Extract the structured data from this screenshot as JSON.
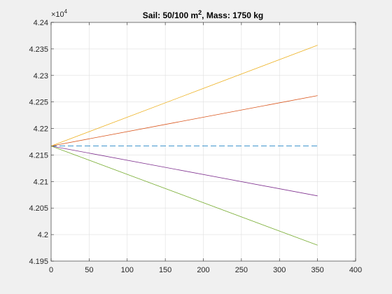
{
  "chart_data": {
    "type": "line",
    "title": {
      "prefix": "Sail: 50/100 m",
      "superscript": "2",
      "suffix": ", Mass: 1750 kg"
    },
    "xlabel": "",
    "ylabel": "",
    "xlim": [
      0,
      400
    ],
    "ylim": [
      41950,
      42400
    ],
    "y_exponent_label": {
      "base": "×10",
      "power": "4"
    },
    "x_ticks": [
      0,
      50,
      100,
      150,
      200,
      250,
      300,
      350,
      400
    ],
    "x_tick_labels": [
      "0",
      "50",
      "100",
      "150",
      "200",
      "250",
      "300",
      "350",
      "400"
    ],
    "y_ticks": [
      41950,
      42000,
      42050,
      42100,
      42150,
      42200,
      42250,
      42300,
      42350,
      42400
    ],
    "y_tick_labels": [
      "4.195",
      "4.2",
      "4.205",
      "4.21",
      "4.215",
      "4.22",
      "4.225",
      "4.23",
      "4.235",
      "4.24"
    ],
    "grid": true,
    "legend": "none",
    "series": [
      {
        "x": [
          0,
          350
        ],
        "y": [
          42167,
          42167
        ],
        "color": "#0072bd",
        "dash": "dashed"
      },
      {
        "x": [
          0,
          350
        ],
        "y": [
          42167,
          42262
        ],
        "color": "#d95319",
        "dash": "solid"
      },
      {
        "x": [
          0,
          350
        ],
        "y": [
          42167,
          42357
        ],
        "color": "#edb120",
        "dash": "solid"
      },
      {
        "x": [
          0,
          350
        ],
        "y": [
          42167,
          42073
        ],
        "color": "#7e2f8e",
        "dash": "solid"
      },
      {
        "x": [
          0,
          350
        ],
        "y": [
          42167,
          41980
        ],
        "color": "#77ac30",
        "dash": "solid"
      }
    ]
  }
}
